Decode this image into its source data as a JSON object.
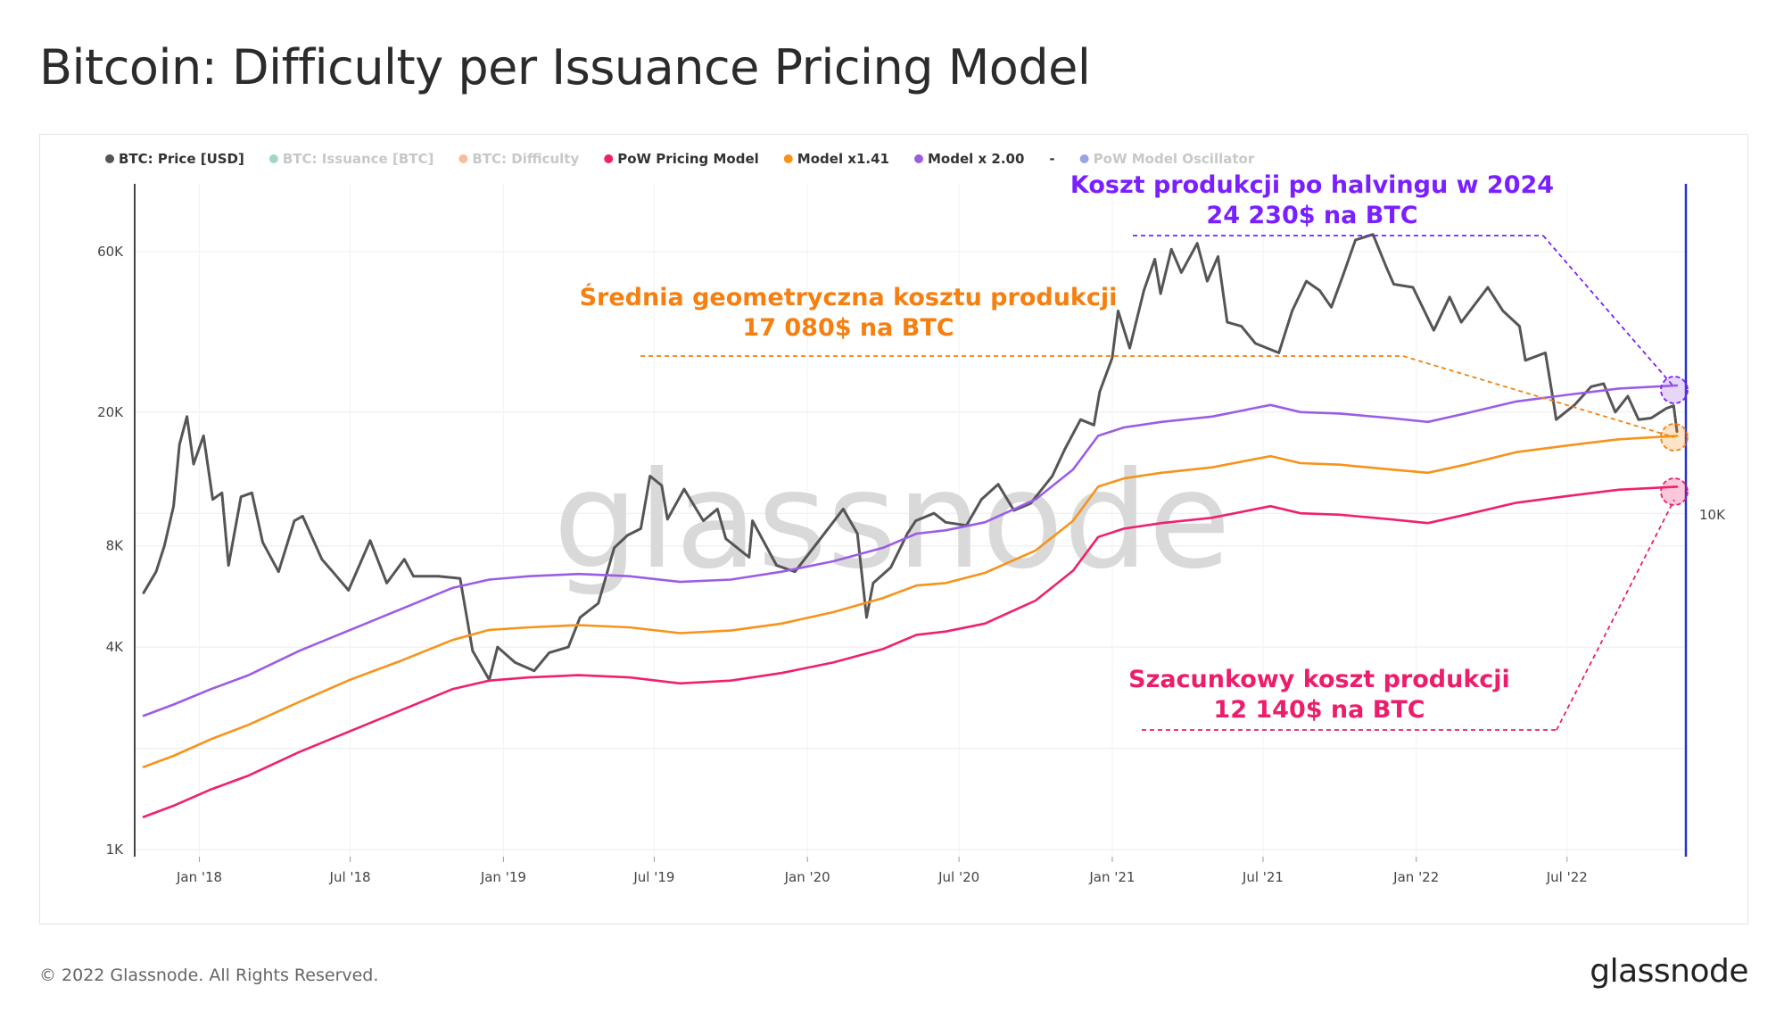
{
  "title": "Bitcoin: Difficulty per Issuance Pricing Model",
  "footer": {
    "copyright": "© 2022 Glassnode. All Rights Reserved.",
    "logo": "glassnode"
  },
  "watermark": "glassnode",
  "colors": {
    "price": "#555555",
    "issuance": "#2ca58d",
    "difficulty": "#f26b21",
    "pow": "#f0206f",
    "model141": "#f7931a",
    "model2": "#9b5de5",
    "oscillator": "#2233cc",
    "annotation_purple": "#7a1fff",
    "annotation_orange": "#f57f10",
    "annotation_pink": "#ec1d6b"
  },
  "legend": [
    {
      "label": "BTC: Price [USD]",
      "color": "#555555",
      "active": true
    },
    {
      "label": "BTC: Issuance [BTC]",
      "color": "#2ca58d",
      "active": false
    },
    {
      "label": "BTC: Difficulty",
      "color": "#f26b21",
      "active": false
    },
    {
      "label": "PoW Pricing Model",
      "color": "#f0206f",
      "active": true
    },
    {
      "label": "Model x1.41",
      "color": "#f7931a",
      "active": true
    },
    {
      "label": "Model x 2.00",
      "color": "#9b5de5",
      "active": true
    },
    {
      "label": "-",
      "color": "",
      "active": true
    },
    {
      "label": "PoW Model Oscillator",
      "color": "#2233cc",
      "active": false
    }
  ],
  "annotations": {
    "purple": {
      "line1": "Koszt produkcji po halvingu w 2024",
      "line2": "24 230$ na BTC"
    },
    "orange": {
      "line1": "Średnia geometryczna kosztu produkcji",
      "line2": "17 080$ na BTC"
    },
    "pink": {
      "line1": "Szacunkowy koszt produkcji",
      "line2": "12 140$ na BTC"
    }
  },
  "chart_data": {
    "type": "line",
    "y_scale": "log",
    "ylim": [
      1000,
      90000
    ],
    "y_ticks": [
      {
        "label": "1K",
        "value": 1000
      },
      {
        "label": "4K",
        "value": 4000
      },
      {
        "label": "8K",
        "value": 8000
      },
      {
        "label": "20K",
        "value": 20000
      },
      {
        "label": "60K",
        "value": 60000
      }
    ],
    "right_axis_label": "10K",
    "xlim": [
      "2017-10-26",
      "2022-11-10"
    ],
    "x_ticks": [
      "Jan '18",
      "Jul '18",
      "Jan '19",
      "Jul '19",
      "Jan '20",
      "Jul '20",
      "Jan '21",
      "Jul '21",
      "Jan '22",
      "Jul '22"
    ],
    "x_tick_dates": [
      "2018-01-01",
      "2018-07-01",
      "2019-01-01",
      "2019-07-01",
      "2020-01-01",
      "2020-07-01",
      "2021-01-01",
      "2021-07-01",
      "2022-01-01",
      "2022-07-01"
    ],
    "series": [
      {
        "name": "BTC: Price [USD]",
        "color": "#555555",
        "points": [
          [
            "2017-10-26",
            5800
          ],
          [
            "2017-11-10",
            6700
          ],
          [
            "2017-11-20",
            8000
          ],
          [
            "2017-12-01",
            10500
          ],
          [
            "2017-12-08",
            16000
          ],
          [
            "2017-12-17",
            19400
          ],
          [
            "2017-12-25",
            14000
          ],
          [
            "2018-01-06",
            17000
          ],
          [
            "2018-01-17",
            11000
          ],
          [
            "2018-01-28",
            11500
          ],
          [
            "2018-02-05",
            7000
          ],
          [
            "2018-02-20",
            11200
          ],
          [
            "2018-03-05",
            11500
          ],
          [
            "2018-03-18",
            8200
          ],
          [
            "2018-04-06",
            6700
          ],
          [
            "2018-04-25",
            9500
          ],
          [
            "2018-05-05",
            9800
          ],
          [
            "2018-05-28",
            7300
          ],
          [
            "2018-06-10",
            6700
          ],
          [
            "2018-06-29",
            5900
          ],
          [
            "2018-07-25",
            8300
          ],
          [
            "2018-08-14",
            6200
          ],
          [
            "2018-09-04",
            7300
          ],
          [
            "2018-09-15",
            6500
          ],
          [
            "2018-10-15",
            6500
          ],
          [
            "2018-11-10",
            6400
          ],
          [
            "2018-11-25",
            3900
          ],
          [
            "2018-12-15",
            3200
          ],
          [
            "2018-12-25",
            4000
          ],
          [
            "2019-01-15",
            3600
          ],
          [
            "2019-02-07",
            3400
          ],
          [
            "2019-02-25",
            3850
          ],
          [
            "2019-03-20",
            4000
          ],
          [
            "2019-04-03",
            4900
          ],
          [
            "2019-04-25",
            5400
          ],
          [
            "2019-05-14",
            7900
          ],
          [
            "2019-05-30",
            8600
          ],
          [
            "2019-06-15",
            9000
          ],
          [
            "2019-06-26",
            12900
          ],
          [
            "2019-07-10",
            12100
          ],
          [
            "2019-07-17",
            9600
          ],
          [
            "2019-08-06",
            11800
          ],
          [
            "2019-08-29",
            9500
          ],
          [
            "2019-09-15",
            10300
          ],
          [
            "2019-09-25",
            8400
          ],
          [
            "2019-10-23",
            7400
          ],
          [
            "2019-10-27",
            9500
          ],
          [
            "2019-11-25",
            7000
          ],
          [
            "2019-12-17",
            6700
          ],
          [
            "2020-01-10",
            8000
          ],
          [
            "2020-02-13",
            10300
          ],
          [
            "2020-03-01",
            8700
          ],
          [
            "2020-03-12",
            4900
          ],
          [
            "2020-03-20",
            6200
          ],
          [
            "2020-04-10",
            6900
          ],
          [
            "2020-04-30",
            8700
          ],
          [
            "2020-05-10",
            9500
          ],
          [
            "2020-06-01",
            10000
          ],
          [
            "2020-06-15",
            9400
          ],
          [
            "2020-07-10",
            9200
          ],
          [
            "2020-07-28",
            11000
          ],
          [
            "2020-08-17",
            12200
          ],
          [
            "2020-09-05",
            10200
          ],
          [
            "2020-09-25",
            10700
          ],
          [
            "2020-10-21",
            12900
          ],
          [
            "2020-11-05",
            15500
          ],
          [
            "2020-11-24",
            19000
          ],
          [
            "2020-12-10",
            18300
          ],
          [
            "2020-12-17",
            23000
          ],
          [
            "2021-01-01",
            29000
          ],
          [
            "2021-01-08",
            40000
          ],
          [
            "2021-01-22",
            31000
          ],
          [
            "2021-02-08",
            46000
          ],
          [
            "2021-02-21",
            57000
          ],
          [
            "2021-02-28",
            45000
          ],
          [
            "2021-03-13",
            61000
          ],
          [
            "2021-03-25",
            52000
          ],
          [
            "2021-04-13",
            63500
          ],
          [
            "2021-04-25",
            49000
          ],
          [
            "2021-05-08",
            58000
          ],
          [
            "2021-05-19",
            37000
          ],
          [
            "2021-06-05",
            36000
          ],
          [
            "2021-06-22",
            32000
          ],
          [
            "2021-07-20",
            30000
          ],
          [
            "2021-08-05",
            40000
          ],
          [
            "2021-08-22",
            49000
          ],
          [
            "2021-09-07",
            46000
          ],
          [
            "2021-09-21",
            41000
          ],
          [
            "2021-10-05",
            51000
          ],
          [
            "2021-10-20",
            65000
          ],
          [
            "2021-11-10",
            67500
          ],
          [
            "2021-11-26",
            54000
          ],
          [
            "2021-12-05",
            48000
          ],
          [
            "2021-12-28",
            47000
          ],
          [
            "2022-01-22",
            35000
          ],
          [
            "2022-02-10",
            44000
          ],
          [
            "2022-02-24",
            37000
          ],
          [
            "2022-03-28",
            47000
          ],
          [
            "2022-04-15",
            40000
          ],
          [
            "2022-05-05",
            36000
          ],
          [
            "2022-05-12",
            28500
          ],
          [
            "2022-06-05",
            30000
          ],
          [
            "2022-06-14",
            22000
          ],
          [
            "2022-06-18",
            19000
          ],
          [
            "2022-07-10",
            21000
          ],
          [
            "2022-07-30",
            23800
          ],
          [
            "2022-08-14",
            24300
          ],
          [
            "2022-08-28",
            20000
          ],
          [
            "2022-09-12",
            22300
          ],
          [
            "2022-09-25",
            19000
          ],
          [
            "2022-10-10",
            19200
          ],
          [
            "2022-10-28",
            20500
          ],
          [
            "2022-11-06",
            20900
          ],
          [
            "2022-11-10",
            17500
          ]
        ]
      },
      {
        "name": "Model x 2.00",
        "color": "#9b5de5",
        "points": [
          [
            "2017-10-26",
            2500
          ],
          [
            "2017-12-01",
            2700
          ],
          [
            "2018-01-15",
            3000
          ],
          [
            "2018-03-01",
            3300
          ],
          [
            "2018-05-01",
            3900
          ],
          [
            "2018-07-01",
            4500
          ],
          [
            "2018-09-01",
            5200
          ],
          [
            "2018-11-01",
            6000
          ],
          [
            "2018-12-15",
            6350
          ],
          [
            "2019-02-01",
            6500
          ],
          [
            "2019-04-01",
            6600
          ],
          [
            "2019-06-01",
            6500
          ],
          [
            "2019-08-01",
            6250
          ],
          [
            "2019-10-01",
            6350
          ],
          [
            "2019-12-01",
            6700
          ],
          [
            "2020-02-01",
            7200
          ],
          [
            "2020-04-01",
            7900
          ],
          [
            "2020-05-11",
            8700
          ],
          [
            "2020-06-15",
            8900
          ],
          [
            "2020-08-01",
            9400
          ],
          [
            "2020-10-01",
            11000
          ],
          [
            "2020-11-15",
            13500
          ],
          [
            "2020-12-15",
            17000
          ],
          [
            "2021-01-15",
            18000
          ],
          [
            "2021-03-01",
            18700
          ],
          [
            "2021-05-01",
            19400
          ],
          [
            "2021-07-10",
            21000
          ],
          [
            "2021-08-15",
            20000
          ],
          [
            "2021-10-01",
            19800
          ],
          [
            "2021-12-01",
            19200
          ],
          [
            "2022-01-15",
            18700
          ],
          [
            "2022-03-01",
            19800
          ],
          [
            "2022-05-01",
            21500
          ],
          [
            "2022-07-01",
            22500
          ],
          [
            "2022-09-01",
            23500
          ],
          [
            "2022-11-10",
            24000
          ]
        ]
      },
      {
        "name": "Model x1.41",
        "color": "#f7931a",
        "points": [
          [
            "2017-10-26",
            1760
          ],
          [
            "2017-12-01",
            1900
          ],
          [
            "2018-01-15",
            2130
          ],
          [
            "2018-03-01",
            2350
          ],
          [
            "2018-05-01",
            2750
          ],
          [
            "2018-07-01",
            3200
          ],
          [
            "2018-09-01",
            3650
          ],
          [
            "2018-11-01",
            4200
          ],
          [
            "2018-12-15",
            4500
          ],
          [
            "2019-02-01",
            4580
          ],
          [
            "2019-04-01",
            4650
          ],
          [
            "2019-06-01",
            4580
          ],
          [
            "2019-08-01",
            4400
          ],
          [
            "2019-10-01",
            4480
          ],
          [
            "2019-12-01",
            4700
          ],
          [
            "2020-02-01",
            5080
          ],
          [
            "2020-04-01",
            5600
          ],
          [
            "2020-05-11",
            6100
          ],
          [
            "2020-06-15",
            6200
          ],
          [
            "2020-08-01",
            6650
          ],
          [
            "2020-10-01",
            7750
          ],
          [
            "2020-11-15",
            9500
          ],
          [
            "2020-12-15",
            12000
          ],
          [
            "2021-01-15",
            12700
          ],
          [
            "2021-03-01",
            13200
          ],
          [
            "2021-05-01",
            13700
          ],
          [
            "2021-07-10",
            14800
          ],
          [
            "2021-08-15",
            14100
          ],
          [
            "2021-10-01",
            13950
          ],
          [
            "2021-12-01",
            13500
          ],
          [
            "2022-01-15",
            13200
          ],
          [
            "2022-03-01",
            13950
          ],
          [
            "2022-05-01",
            15200
          ],
          [
            "2022-07-01",
            15900
          ],
          [
            "2022-09-01",
            16600
          ],
          [
            "2022-11-10",
            17000
          ]
        ]
      },
      {
        "name": "PoW Pricing Model",
        "color": "#f0206f",
        "points": [
          [
            "2017-10-26",
            1250
          ],
          [
            "2017-12-01",
            1350
          ],
          [
            "2018-01-15",
            1510
          ],
          [
            "2018-03-01",
            1660
          ],
          [
            "2018-05-01",
            1950
          ],
          [
            "2018-07-01",
            2250
          ],
          [
            "2018-09-01",
            2600
          ],
          [
            "2018-11-01",
            3000
          ],
          [
            "2018-12-15",
            3180
          ],
          [
            "2019-02-01",
            3250
          ],
          [
            "2019-04-01",
            3300
          ],
          [
            "2019-06-01",
            3250
          ],
          [
            "2019-08-01",
            3120
          ],
          [
            "2019-10-01",
            3180
          ],
          [
            "2019-12-01",
            3350
          ],
          [
            "2020-02-01",
            3600
          ],
          [
            "2020-04-01",
            3950
          ],
          [
            "2020-05-11",
            4350
          ],
          [
            "2020-06-15",
            4450
          ],
          [
            "2020-08-01",
            4700
          ],
          [
            "2020-10-01",
            5500
          ],
          [
            "2020-11-15",
            6750
          ],
          [
            "2020-12-15",
            8500
          ],
          [
            "2021-01-15",
            9000
          ],
          [
            "2021-03-01",
            9350
          ],
          [
            "2021-05-01",
            9700
          ],
          [
            "2021-07-10",
            10500
          ],
          [
            "2021-08-15",
            10000
          ],
          [
            "2021-10-01",
            9900
          ],
          [
            "2021-12-01",
            9600
          ],
          [
            "2022-01-15",
            9350
          ],
          [
            "2022-03-01",
            9900
          ],
          [
            "2022-05-01",
            10750
          ],
          [
            "2022-07-01",
            11250
          ],
          [
            "2022-09-01",
            11750
          ],
          [
            "2022-11-10",
            12000
          ]
        ]
      }
    ]
  }
}
